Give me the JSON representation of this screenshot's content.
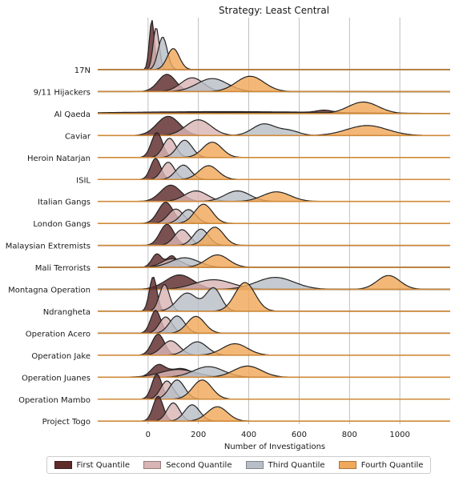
{
  "chart_data": {
    "type": "ridgeline-density",
    "title": "Strategy: Least Central",
    "xlabel": "Number of Investigations",
    "xlim": [
      -200,
      1200
    ],
    "xticks": [
      0,
      200,
      400,
      600,
      800,
      1000
    ],
    "grid": "x-vertical",
    "legend_position": "bottom",
    "quantiles": [
      {
        "name": "First Quantile",
        "color": "#5e2a2a"
      },
      {
        "name": "Second Quantile",
        "color": "#d9b4b4"
      },
      {
        "name": "Third Quantile",
        "color": "#b8bec7"
      },
      {
        "name": "Fourth Quantile",
        "color": "#f0a85a"
      }
    ],
    "networks": [
      {
        "name": "17N",
        "peaks": [
          [
            [
              15,
              10,
              2.6
            ]
          ],
          [
            [
              32,
              12,
              2.2
            ]
          ],
          [
            [
              58,
              18,
              1.7
            ]
          ],
          [
            [
              100,
              24,
              1.1
            ]
          ]
        ]
      },
      {
        "name": "9/11 Hijackers",
        "peaks": [
          [
            [
              75,
              35,
              0.9
            ]
          ],
          [
            [
              175,
              45,
              0.72
            ]
          ],
          [
            [
              255,
              60,
              0.68
            ]
          ],
          [
            [
              405,
              55,
              0.8
            ]
          ]
        ]
      },
      {
        "name": "Al Qaeda",
        "peaks": [
          [
            [
              300,
              400,
              0.1
            ],
            [
              700,
              30,
              0.12
            ]
          ],
          [
            [
              380,
              200,
              0.06
            ]
          ],
          [
            [
              500,
              250,
              0.06
            ]
          ],
          [
            [
              855,
              60,
              0.6
            ]
          ]
        ]
      },
      {
        "name": "Caviar",
        "peaks": [
          [
            [
              80,
              45,
              1.0
            ]
          ],
          [
            [
              200,
              50,
              0.82
            ]
          ],
          [
            [
              460,
              45,
              0.6
            ],
            [
              560,
              40,
              0.25
            ]
          ],
          [
            [
              870,
              80,
              0.52
            ]
          ]
        ]
      },
      {
        "name": "Heroin Natarjan",
        "peaks": [
          [
            [
              35,
              22,
              1.3
            ]
          ],
          [
            [
              85,
              25,
              1.0
            ]
          ],
          [
            [
              145,
              30,
              0.9
            ]
          ],
          [
            [
              255,
              38,
              0.8
            ]
          ]
        ]
      },
      {
        "name": "ISIL",
        "peaks": [
          [
            [
              30,
              20,
              1.1
            ]
          ],
          [
            [
              80,
              25,
              0.9
            ]
          ],
          [
            [
              140,
              30,
              0.75
            ]
          ],
          [
            [
              240,
              38,
              0.72
            ]
          ]
        ]
      },
      {
        "name": "Italian Gangs",
        "peaks": [
          [
            [
              90,
              40,
              0.85
            ]
          ],
          [
            [
              190,
              45,
              0.55
            ]
          ],
          [
            [
              355,
              50,
              0.55
            ]
          ],
          [
            [
              510,
              55,
              0.5
            ]
          ]
        ]
      },
      {
        "name": "London Gangs",
        "peaks": [
          [
            [
              70,
              30,
              1.1
            ]
          ],
          [
            [
              110,
              30,
              0.75
            ]
          ],
          [
            [
              160,
              30,
              0.72
            ]
          ],
          [
            [
              220,
              35,
              1.0
            ]
          ]
        ]
      },
      {
        "name": "Malaysian Extremists",
        "peaks": [
          [
            [
              75,
              28,
              1.1
            ]
          ],
          [
            [
              135,
              30,
              0.82
            ]
          ],
          [
            [
              210,
              30,
              0.85
            ]
          ],
          [
            [
              265,
              35,
              0.95
            ]
          ]
        ]
      },
      {
        "name": "Mali Terrorists",
        "peaks": [
          [
            [
              35,
              20,
              0.7
            ],
            [
              95,
              20,
              0.6
            ]
          ],
          [
            [
              95,
              40,
              0.45
            ]
          ],
          [
            [
              145,
              55,
              0.5
            ]
          ],
          [
            [
              275,
              45,
              0.65
            ]
          ]
        ]
      },
      {
        "name": "Montagna Operation",
        "peaks": [
          [
            [
              125,
              55,
              0.75
            ]
          ],
          [
            [
              260,
              75,
              0.5
            ]
          ],
          [
            [
              505,
              75,
              0.62
            ]
          ],
          [
            [
              955,
              45,
              0.72
            ]
          ]
        ]
      },
      {
        "name": "Ndrangheta",
        "peaks": [
          [
            [
              20,
              15,
              1.8
            ]
          ],
          [
            [
              65,
              20,
              1.4
            ]
          ],
          [
            [
              155,
              40,
              0.95
            ],
            [
              260,
              30,
              1.2
            ]
          ],
          [
            [
              385,
              40,
              1.5
            ]
          ]
        ]
      },
      {
        "name": "Operation Acero",
        "peaks": [
          [
            [
              30,
              20,
              1.2
            ]
          ],
          [
            [
              70,
              25,
              0.85
            ]
          ],
          [
            [
              115,
              30,
              0.9
            ]
          ],
          [
            [
              190,
              35,
              0.88
            ]
          ]
        ]
      },
      {
        "name": "Operation Jake",
        "peaks": [
          [
            [
              40,
              25,
              1.1
            ]
          ],
          [
            [
              90,
              35,
              0.75
            ]
          ],
          [
            [
              195,
              40,
              0.7
            ]
          ],
          [
            [
              345,
              50,
              0.6
            ]
          ]
        ]
      },
      {
        "name": "Operation Juanes",
        "peaks": [
          [
            [
              40,
              28,
              0.6
            ],
            [
              130,
              45,
              0.45
            ]
          ],
          [
            [
              120,
              70,
              0.4
            ]
          ],
          [
            [
              240,
              60,
              0.55
            ]
          ],
          [
            [
              395,
              55,
              0.58
            ]
          ]
        ]
      },
      {
        "name": "Operation Mambo",
        "peaks": [
          [
            [
              35,
              20,
              1.3
            ]
          ],
          [
            [
              75,
              25,
              0.95
            ]
          ],
          [
            [
              115,
              30,
              1.0
            ]
          ],
          [
            [
              215,
              38,
              1.0
            ]
          ]
        ]
      },
      {
        "name": "Project Togo",
        "peaks": [
          [
            [
              40,
              20,
              1.3
            ]
          ],
          [
            [
              100,
              25,
              0.95
            ]
          ],
          [
            [
              175,
              30,
              0.85
            ]
          ],
          [
            [
              275,
              40,
              0.75
            ]
          ]
        ]
      }
    ]
  }
}
